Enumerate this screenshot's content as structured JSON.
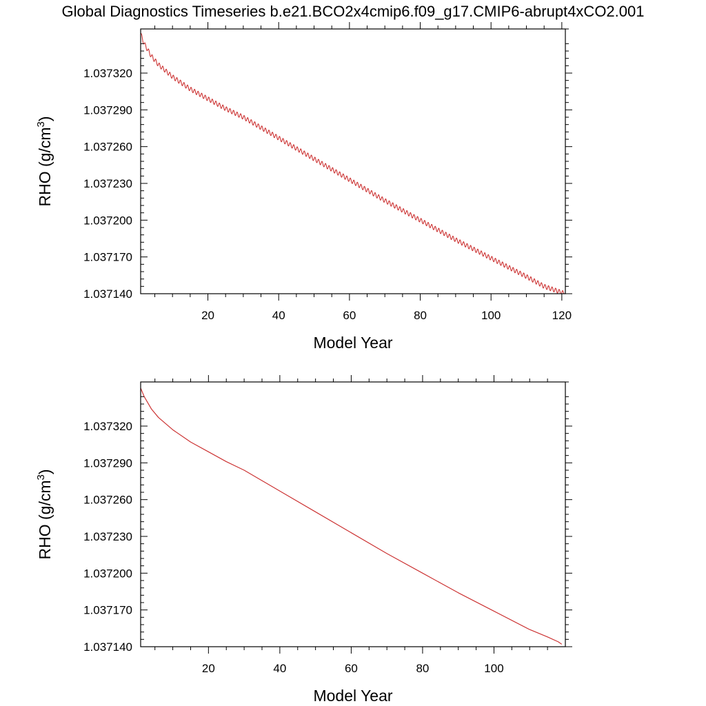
{
  "figure": {
    "title": "Global Diagnostics Timeseries b.e21.BCO2x4cmip6.f09_g17.CMIP6-abrupt4xCO2.001"
  },
  "chart_data": [
    {
      "type": "line",
      "title": "",
      "xlabel": "Model Year",
      "ylabel": "RHO (g/cm",
      "ylabel_superscript": "3",
      "ylabel_suffix": ")",
      "xlim": [
        1,
        121
      ],
      "ylim": [
        1.03714,
        1.037356
      ],
      "x_ticks": [
        20,
        40,
        60,
        80,
        100,
        120
      ],
      "x_tick_labels": [
        "20",
        "40",
        "60",
        "80",
        "100",
        "120"
      ],
      "y_ticks": [
        1.03714,
        1.03717,
        1.0372,
        1.03723,
        1.03726,
        1.03729,
        1.03732
      ],
      "y_tick_labels": [
        "1.037140",
        "1.037170",
        "1.037200",
        "1.037230",
        "1.037260",
        "1.037290",
        "1.037320"
      ],
      "resolution": "monthly",
      "grid": false,
      "series": [
        {
          "color": "#cc3333",
          "seasonal_amplitude": 1.8e-06,
          "annual_x": [
            1,
            2,
            4,
            6,
            8,
            10,
            15,
            20,
            25,
            30,
            40,
            50,
            60,
            70,
            80,
            90,
            100,
            110,
            115,
            120
          ],
          "annual_y": [
            1.037352,
            1.037344,
            1.037334,
            1.037327,
            1.037322,
            1.037317,
            1.037307,
            1.037299,
            1.037291,
            1.037284,
            1.037267,
            1.03725,
            1.037233,
            1.037216,
            1.0372,
            1.037184,
            1.037169,
            1.037154,
            1.037146,
            1.037141
          ]
        }
      ]
    },
    {
      "type": "line",
      "title": "",
      "xlabel": "Model Year",
      "ylabel": "RHO (g/cm",
      "ylabel_superscript": "3",
      "ylabel_suffix": ")",
      "xlim": [
        1,
        120
      ],
      "ylim": [
        1.03714,
        1.037356
      ],
      "x_ticks": [
        20,
        40,
        60,
        80,
        100
      ],
      "x_tick_labels": [
        "20",
        "40",
        "60",
        "80",
        "100"
      ],
      "y_ticks": [
        1.03714,
        1.03717,
        1.0372,
        1.03723,
        1.03726,
        1.03729,
        1.03732
      ],
      "y_tick_labels": [
        "1.037140",
        "1.037170",
        "1.037200",
        "1.037230",
        "1.037260",
        "1.037290",
        "1.037320"
      ],
      "resolution": "annual",
      "grid": false,
      "series": [
        {
          "color": "#cc3333",
          "x": [
            1,
            2,
            4,
            6,
            8,
            10,
            15,
            20,
            25,
            30,
            40,
            50,
            60,
            70,
            80,
            90,
            100,
            110,
            115,
            118,
            119
          ],
          "y": [
            1.037351,
            1.037344,
            1.037334,
            1.037327,
            1.037322,
            1.037317,
            1.037307,
            1.037299,
            1.037291,
            1.037284,
            1.037267,
            1.03725,
            1.037233,
            1.037216,
            1.0372,
            1.037184,
            1.037169,
            1.037154,
            1.037148,
            1.037144,
            1.037142
          ]
        }
      ]
    }
  ]
}
